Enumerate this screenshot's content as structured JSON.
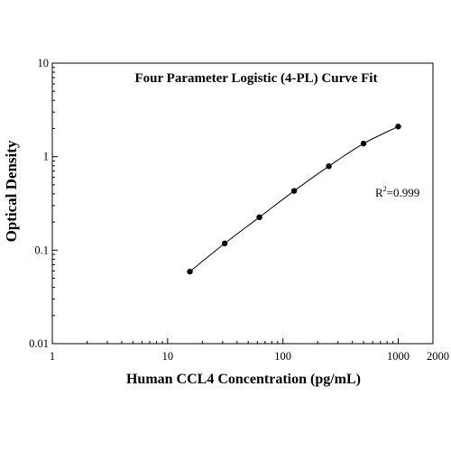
{
  "chart_data": {
    "type": "scatter",
    "title": "Four Parameter Logistic (4-PL) Curve Fit",
    "xlabel": "Human CCL4 Concentration (pg/mL)",
    "ylabel": "Optical Density",
    "x_scale": "log",
    "y_scale": "log",
    "xlim": [
      1,
      2000
    ],
    "ylim": [
      0.01,
      10
    ],
    "x_ticks": [
      {
        "value": 1,
        "label": "1"
      },
      {
        "value": 10,
        "label": "10"
      },
      {
        "value": 100,
        "label": "100"
      },
      {
        "value": 1000,
        "label": "1000"
      },
      {
        "value": 2000,
        "label": "2000"
      }
    ],
    "y_ticks": [
      {
        "value": 0.01,
        "label": "0.01"
      },
      {
        "value": 0.1,
        "label": "0.1"
      },
      {
        "value": 1,
        "label": "1"
      },
      {
        "value": 10,
        "label": "10"
      }
    ],
    "grid": false,
    "x": [
      15.6,
      31.25,
      62.5,
      125,
      250,
      500,
      1000
    ],
    "y": [
      0.059,
      0.118,
      0.225,
      0.43,
      0.79,
      1.38,
      2.1
    ],
    "fit_curve": true,
    "annotation": {
      "base": "R",
      "sup": "2",
      "rest": "=0.999"
    },
    "colors": {
      "points": "#000000",
      "curve": "#000000",
      "axes": "#000000"
    }
  }
}
